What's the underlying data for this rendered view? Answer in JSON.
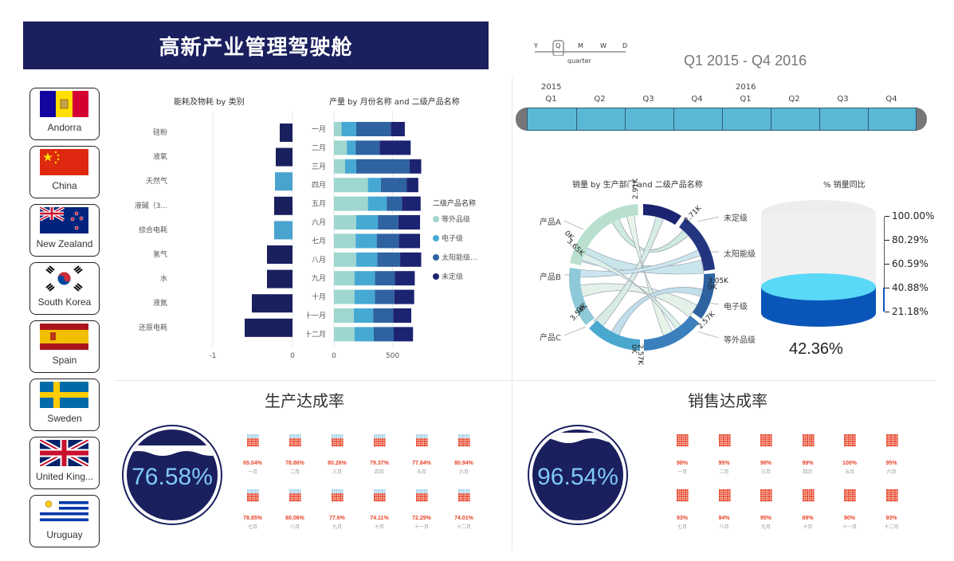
{
  "header": {
    "title": "高新产业管理驾驶舱"
  },
  "countries": [
    {
      "name": "Andorra",
      "flag": "andorra-flag"
    },
    {
      "name": "China",
      "flag": "china-flag"
    },
    {
      "name": "New Zealand",
      "flag": "new-zealand-flag"
    },
    {
      "name": "South Korea",
      "flag": "south-korea-flag"
    },
    {
      "name": "Spain",
      "flag": "spain-flag"
    },
    {
      "name": "Sweden",
      "flag": "sweden-flag"
    },
    {
      "name": "United King...",
      "flag": "united-kingdom-flag"
    },
    {
      "name": "Uruguay",
      "flag": "uruguay-flag"
    }
  ],
  "timeline": {
    "levels": [
      "Y",
      "Q",
      "M",
      "W",
      "D"
    ],
    "selected_level": "Q",
    "level_caption": "quarter",
    "range_label": "Q1 2015 - Q4 2016",
    "years": [
      "2015",
      "2016"
    ],
    "quarters": [
      "Q1",
      "Q2",
      "Q3",
      "Q4",
      "Q1",
      "Q2",
      "Q3",
      "Q4"
    ]
  },
  "energy_chart": {
    "title": "能耗及物耗 by 类别",
    "axis_ticks": [
      "-1",
      "0"
    ]
  },
  "production_chart": {
    "title": "产量 by 月份名称 and 二级产品名称",
    "axis_ticks": [
      "0",
      "500"
    ],
    "legend_title": "二级产品名称",
    "legend": [
      "等外品级",
      "电子级",
      "太阳能级...",
      "未定级"
    ]
  },
  "sales_chord": {
    "title": "销量 by 生产部门 and 二级产品名称",
    "left_labels": [
      "产品A",
      "产品B",
      "产品C"
    ],
    "right_labels": [
      "未定级",
      "太阳能级",
      "电子级",
      "等外品级"
    ],
    "tick_labels": [
      "2.91K",
      "0K",
      "3.65K",
      "0K",
      "3.54K",
      "0K",
      "2.57K",
      "2.57K",
      "3.05K",
      "0K",
      "2.71K"
    ]
  },
  "sales_yoy": {
    "title": "% 销量同比",
    "scale": [
      "100.00%",
      "80.29%",
      "60.59%",
      "40.88%",
      "21.18%"
    ],
    "value": "42.36%"
  },
  "production_rate": {
    "title": "生产达成率",
    "value": "76.58%",
    "months": [
      {
        "pct": "65.04%",
        "mon": "一月"
      },
      {
        "pct": "78.86%",
        "mon": "二月"
      },
      {
        "pct": "80.26%",
        "mon": "三月"
      },
      {
        "pct": "79.37%",
        "mon": "四月"
      },
      {
        "pct": "77.84%",
        "mon": "五月"
      },
      {
        "pct": "80.94%",
        "mon": "六月"
      },
      {
        "pct": "78.85%",
        "mon": "七月"
      },
      {
        "pct": "80.06%",
        "mon": "八月"
      },
      {
        "pct": "77.6%",
        "mon": "九月"
      },
      {
        "pct": "74.11%",
        "mon": "十月"
      },
      {
        "pct": "72.29%",
        "mon": "十一月"
      },
      {
        "pct": "74.01%",
        "mon": "十二月"
      }
    ]
  },
  "sales_rate": {
    "title": "销售达成率",
    "value": "96.54%",
    "months": [
      {
        "pct": "98%",
        "mon": "一月"
      },
      {
        "pct": "95%",
        "mon": "二月"
      },
      {
        "pct": "98%",
        "mon": "三月"
      },
      {
        "pct": "99%",
        "mon": "四月"
      },
      {
        "pct": "100%",
        "mon": "五月"
      },
      {
        "pct": "95%",
        "mon": "六月"
      },
      {
        "pct": "93%",
        "mon": "七月"
      },
      {
        "pct": "94%",
        "mon": "八月"
      },
      {
        "pct": "95%",
        "mon": "九月"
      },
      {
        "pct": "89%",
        "mon": "十月"
      },
      {
        "pct": "90%",
        "mon": "十一月"
      },
      {
        "pct": "93%",
        "mon": "十二月"
      }
    ]
  },
  "colors": {
    "navy": "#1a1f5e",
    "energy_light": "#4aa3cf",
    "series": [
      "#9fd6cf",
      "#46a9d3",
      "#2e62a1",
      "#1c2370"
    ],
    "icon_red": "#e8452a"
  },
  "chart_data": [
    {
      "type": "bar",
      "orientation": "horizontal",
      "title": "能耗及物耗 by 类别",
      "categories": [
        "硅粉",
        "液氧",
        "天然气",
        "液碱（3...",
        "综合电耗",
        "氢气",
        "水",
        "液氮",
        "还原电耗"
      ],
      "values": [
        -0.16,
        -0.21,
        -0.22,
        -0.23,
        -0.23,
        -0.32,
        -0.32,
        -0.51,
        -0.6
      ],
      "xlim": [
        -1.2,
        0
      ],
      "highlight": [
        "天然气",
        "综合电耗"
      ]
    },
    {
      "type": "bar",
      "orientation": "horizontal",
      "stacked": true,
      "title": "产量 by 月份名称 and 二级产品名称",
      "categories": [
        "一月",
        "二月",
        "三月",
        "四月",
        "五月",
        "六月",
        "七月",
        "八月",
        "九月",
        "十月",
        "十一月",
        "十二月"
      ],
      "xlim": [
        0,
        720
      ],
      "series": [
        {
          "name": "等外品级",
          "values": [
            65,
            110,
            95,
            290,
            290,
            190,
            185,
            190,
            175,
            175,
            170,
            175
          ]
        },
        {
          "name": "电子级",
          "values": [
            125,
            75,
            95,
            110,
            160,
            185,
            180,
            180,
            175,
            175,
            165,
            165
          ]
        },
        {
          "name": "太阳能级...",
          "values": [
            295,
            205,
            455,
            220,
            130,
            175,
            190,
            195,
            170,
            165,
            170,
            170
          ]
        },
        {
          "name": "未定级",
          "values": [
            120,
            265,
            100,
            100,
            160,
            185,
            180,
            180,
            170,
            170,
            155,
            165
          ]
        }
      ]
    }
  ]
}
